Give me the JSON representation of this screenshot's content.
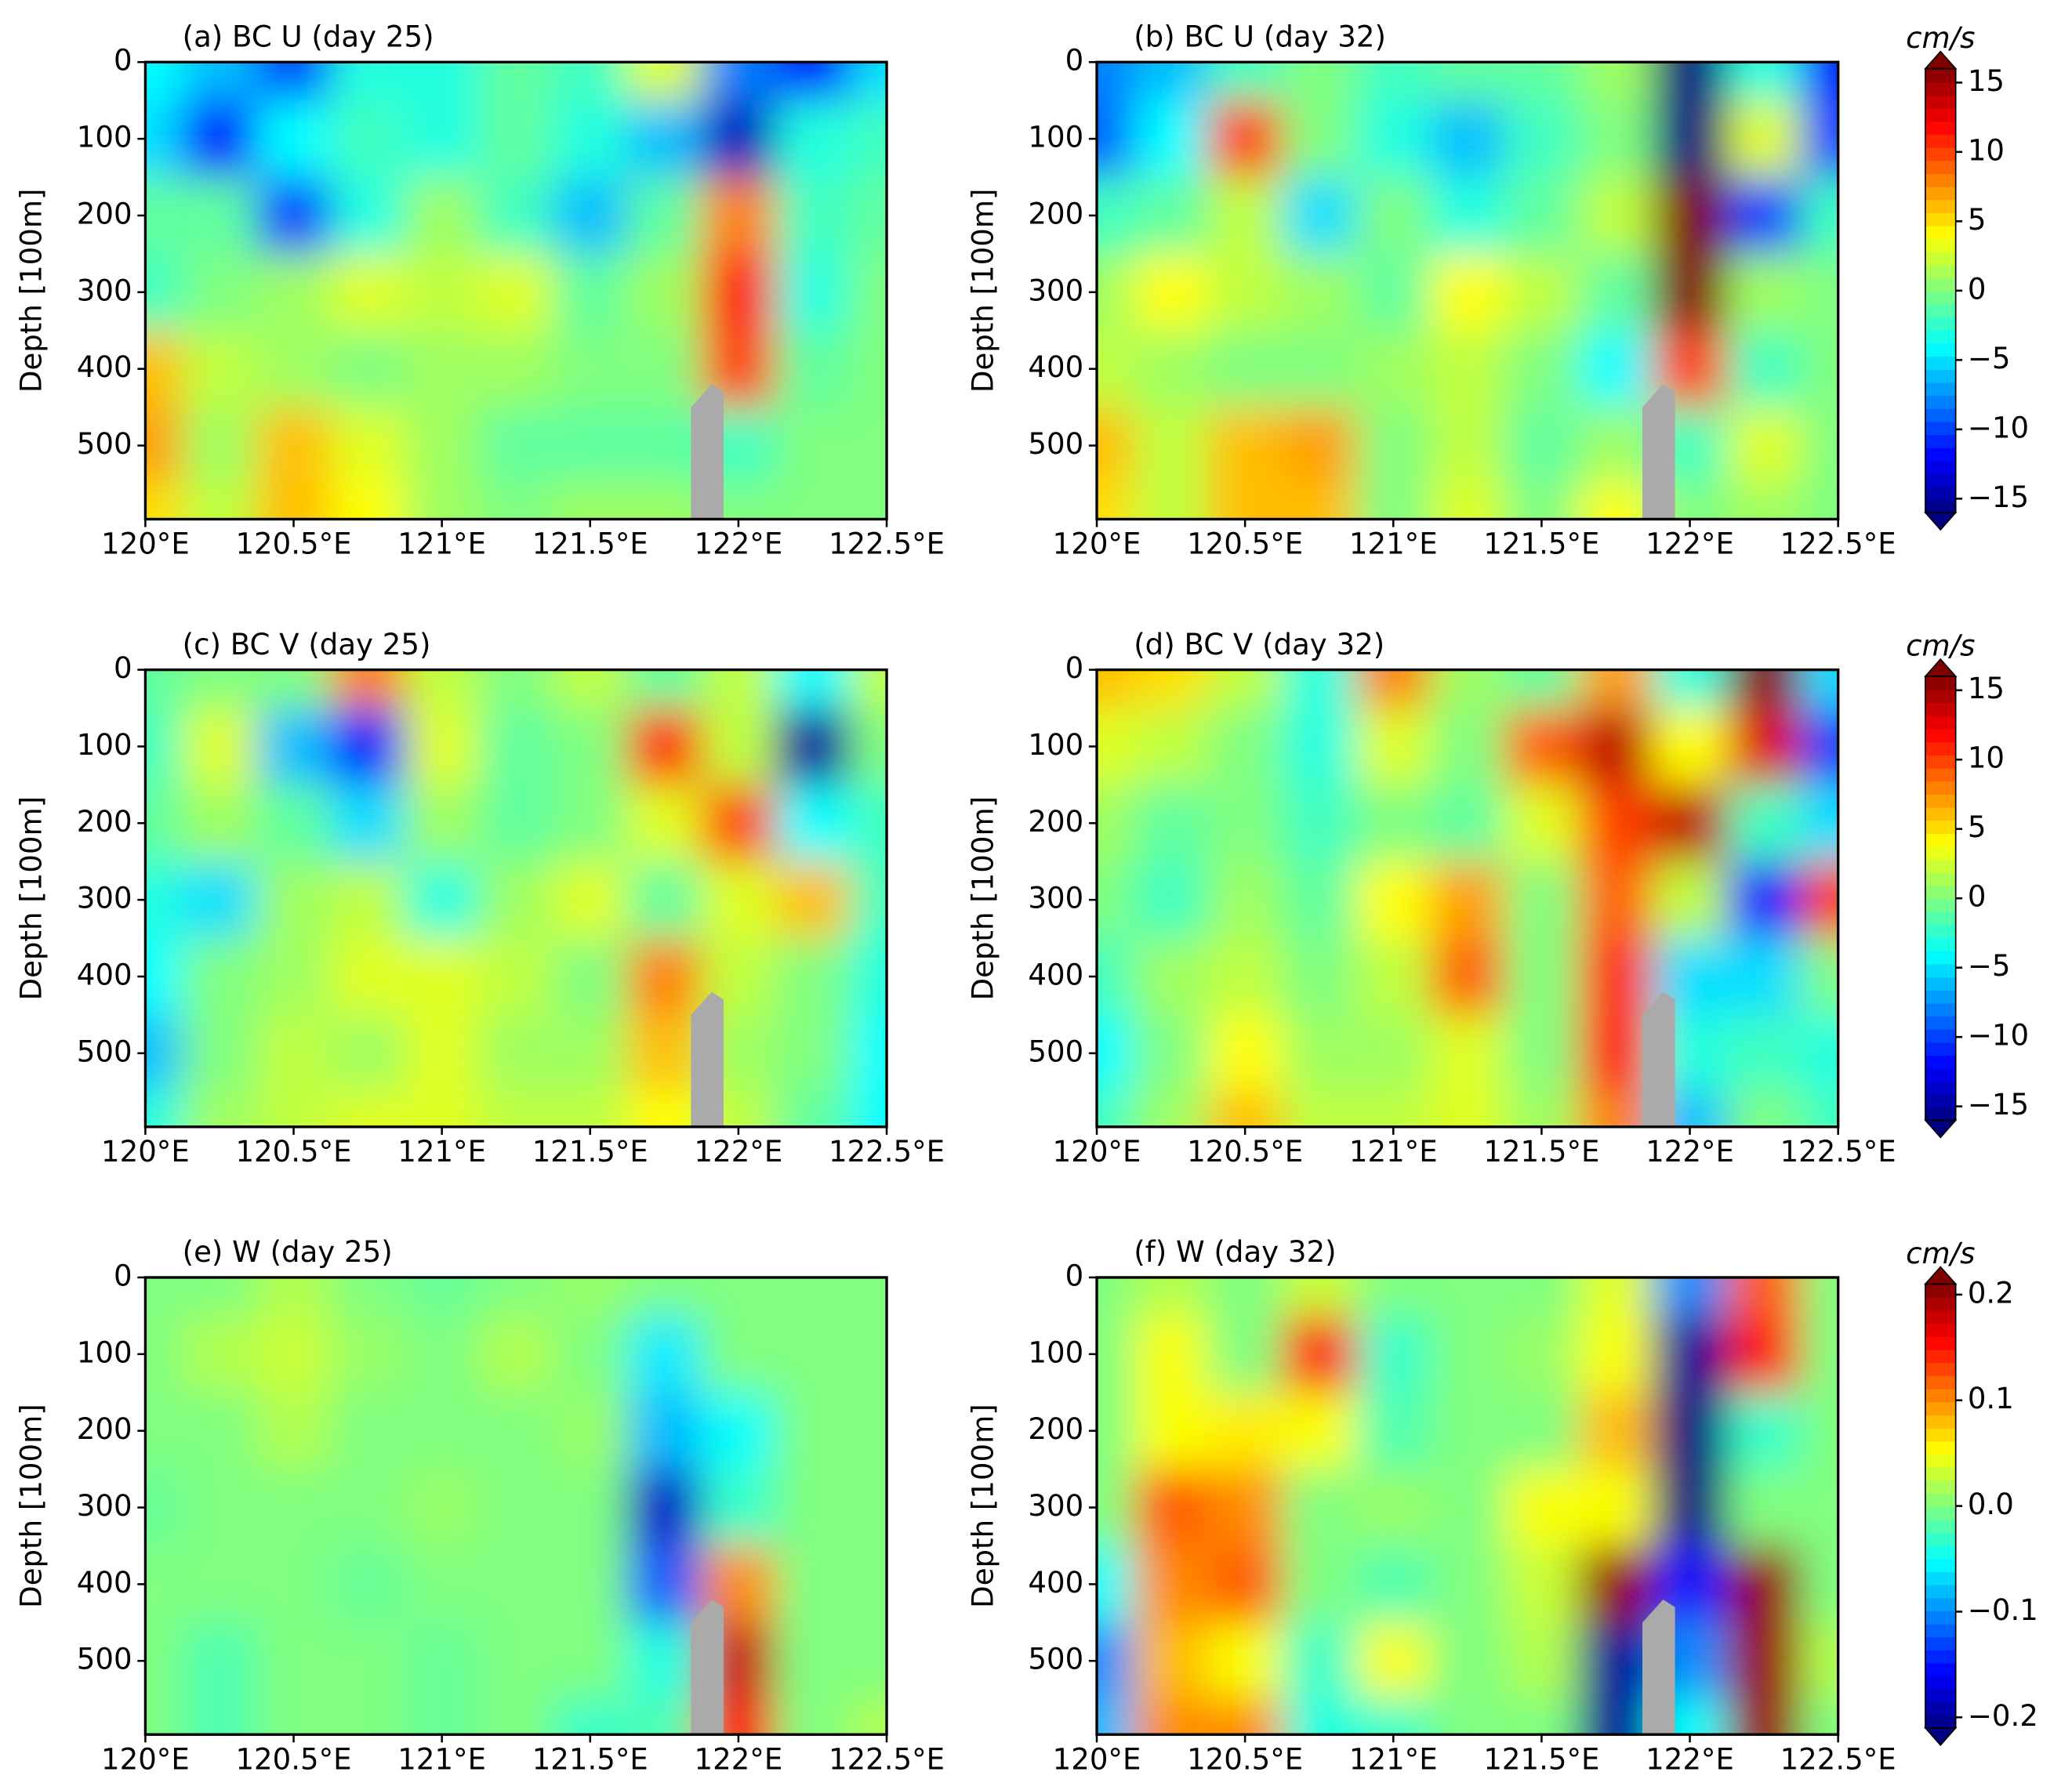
{
  "chart_data": [
    {
      "type": "contour",
      "title": "(a) BC U (day 25)",
      "ylabel": "Depth [100m]",
      "colormap": "jet",
      "y_inverted": true,
      "xlim": [
        120,
        122.5
      ],
      "ylim": [
        0,
        596
      ],
      "xticks": [
        {
          "value": 120,
          "label": "120°E"
        },
        {
          "value": 120.5,
          "label": "120.5°E"
        },
        {
          "value": 121,
          "label": "121°E"
        },
        {
          "value": 121.5,
          "label": "121.5°E"
        },
        {
          "value": 122,
          "label": "122°E"
        },
        {
          "value": 122.5,
          "label": "122.5°E"
        }
      ],
      "yticks": [
        0,
        100,
        200,
        300,
        400,
        500
      ],
      "land_mask": {
        "color": "#aaaaaa",
        "x": [
          121.84,
          121.84,
          121.91,
          121.95,
          121.95
        ],
        "depth": [
          596,
          450,
          420,
          430,
          596
        ]
      },
      "field": {
        "x": [
          120,
          120.25,
          120.5,
          120.75,
          121,
          121.25,
          121.5,
          121.75,
          122,
          122.25,
          122.5
        ],
        "depth": [
          0,
          100,
          200,
          300,
          400,
          500,
          596
        ],
        "values": [
          [
            -4,
            -6,
            -10,
            -3,
            -3,
            -1,
            -2,
            3,
            -8,
            -12,
            -5
          ],
          [
            -5,
            -12,
            -4,
            -2,
            -3,
            -1,
            -3,
            -6,
            -14,
            -3,
            -2
          ],
          [
            -1,
            -1,
            -10,
            -3,
            1,
            -2,
            -6,
            -1,
            8,
            -2,
            -1
          ],
          [
            -2,
            0,
            1,
            3,
            2,
            3,
            -1,
            1,
            12,
            -3,
            0
          ],
          [
            6,
            2,
            1,
            0,
            1,
            1,
            0,
            0,
            10,
            -1,
            0
          ],
          [
            7,
            1,
            6,
            3,
            1,
            -1,
            -1,
            -1,
            -2,
            0,
            0
          ],
          [
            5,
            2,
            6,
            4,
            1,
            0,
            1,
            1,
            0,
            0,
            0
          ]
        ]
      }
    },
    {
      "type": "contour",
      "title": "(b) BC U (day 32)",
      "ylabel": "Depth [100m]",
      "colormap": "jet",
      "y_inverted": true,
      "xlim": [
        120,
        122.5
      ],
      "ylim": [
        0,
        596
      ],
      "xticks": [
        {
          "value": 120,
          "label": "120°E"
        },
        {
          "value": 120.5,
          "label": "120.5°E"
        },
        {
          "value": 121,
          "label": "121°E"
        },
        {
          "value": 121.5,
          "label": "121.5°E"
        },
        {
          "value": 122,
          "label": "122°E"
        },
        {
          "value": 122.5,
          "label": "122.5°E"
        }
      ],
      "yticks": [
        0,
        100,
        200,
        300,
        400,
        500
      ],
      "land_mask": {
        "color": "#aaaaaa",
        "x": [
          121.84,
          121.84,
          121.91,
          121.95,
          121.95
        ],
        "depth": [
          596,
          450,
          420,
          430,
          596
        ]
      },
      "field": {
        "x": [
          120,
          120.25,
          120.5,
          120.75,
          121,
          121.25,
          121.5,
          121.75,
          122,
          122.25,
          122.5
        ],
        "depth": [
          0,
          100,
          200,
          300,
          400,
          500,
          596
        ],
        "values": [
          [
            -8,
            -6,
            -2,
            0,
            -2,
            -1,
            -1,
            1,
            -16,
            -3,
            -12
          ],
          [
            -9,
            -4,
            10,
            0,
            -3,
            -6,
            -2,
            0,
            -16,
            3,
            -10
          ],
          [
            -2,
            -1,
            2,
            -5,
            0,
            -3,
            -1,
            2,
            16,
            -10,
            -2
          ],
          [
            1,
            4,
            2,
            1,
            -1,
            4,
            2,
            -1,
            16,
            1,
            0
          ],
          [
            2,
            1,
            0,
            0,
            1,
            2,
            0,
            -4,
            10,
            -2,
            0
          ],
          [
            6,
            2,
            6,
            7,
            0,
            2,
            -1,
            1,
            -2,
            3,
            0
          ],
          [
            5,
            2,
            6,
            6,
            0,
            3,
            0,
            4,
            0,
            1,
            0
          ]
        ]
      },
      "colorbar": {
        "label": "cm/s",
        "lim": [
          -16,
          16
        ],
        "extend": "both",
        "ticks": [
          {
            "value": -15,
            "label": "−15"
          },
          {
            "value": -10,
            "label": "−10"
          },
          {
            "value": -5,
            "label": "−5"
          },
          0,
          5,
          10,
          15
        ]
      }
    },
    {
      "type": "contour",
      "title": "(c) BC V (day 25)",
      "ylabel": "Depth [100m]",
      "colormap": "jet",
      "y_inverted": true,
      "xlim": [
        120,
        122.5
      ],
      "ylim": [
        0,
        596
      ],
      "xticks": [
        {
          "value": 120,
          "label": "120°E"
        },
        {
          "value": 120.5,
          "label": "120.5°E"
        },
        {
          "value": 121,
          "label": "121°E"
        },
        {
          "value": 121.5,
          "label": "121.5°E"
        },
        {
          "value": 122,
          "label": "122°E"
        },
        {
          "value": 122.5,
          "label": "122.5°E"
        }
      ],
      "yticks": [
        0,
        100,
        200,
        300,
        400,
        500
      ],
      "land_mask": {
        "color": "#aaaaaa",
        "x": [
          121.84,
          121.84,
          121.91,
          121.95,
          121.95
        ],
        "depth": [
          596,
          450,
          420,
          430,
          596
        ]
      },
      "field": {
        "x": [
          120,
          120.25,
          120.5,
          120.75,
          121,
          121.25,
          121.5,
          121.75,
          122,
          122.25,
          122.5
        ],
        "depth": [
          0,
          100,
          200,
          300,
          400,
          500,
          596
        ],
        "values": [
          [
            -1,
            0,
            0,
            8,
            2,
            0,
            2,
            -1,
            2,
            -4,
            2
          ],
          [
            -2,
            3,
            -6,
            -12,
            3,
            -1,
            0,
            11,
            2,
            -15,
            0
          ],
          [
            -1,
            1,
            -1,
            -5,
            1,
            -1,
            0,
            3,
            10,
            -4,
            -2
          ],
          [
            -3,
            -5,
            1,
            2,
            -3,
            1,
            3,
            -1,
            3,
            6,
            -2
          ],
          [
            -4,
            0,
            1,
            3,
            3,
            2,
            0,
            8,
            2,
            0,
            -3
          ],
          [
            -6,
            0,
            2,
            1,
            3,
            1,
            1,
            6,
            1,
            0,
            -4
          ],
          [
            -3,
            1,
            2,
            3,
            3,
            2,
            2,
            4,
            2,
            -1,
            -4
          ]
        ]
      }
    },
    {
      "type": "contour",
      "title": "(d) BC V (day 32)",
      "ylabel": "Depth [100m]",
      "colormap": "jet",
      "y_inverted": true,
      "xlim": [
        120,
        122.5
      ],
      "ylim": [
        0,
        596
      ],
      "xticks": [
        {
          "value": 120,
          "label": "120°E"
        },
        {
          "value": 120.5,
          "label": "120.5°E"
        },
        {
          "value": 121,
          "label": "121°E"
        },
        {
          "value": 121.5,
          "label": "121.5°E"
        },
        {
          "value": 122,
          "label": "122°E"
        },
        {
          "value": 122.5,
          "label": "122.5°E"
        }
      ],
      "yticks": [
        0,
        100,
        200,
        300,
        400,
        500
      ],
      "land_mask": {
        "color": "#aaaaaa",
        "x": [
          121.84,
          121.84,
          121.91,
          121.95,
          121.95
        ],
        "depth": [
          596,
          450,
          420,
          430,
          596
        ]
      },
      "field": {
        "x": [
          120,
          120.25,
          120.5,
          120.75,
          121,
          121.25,
          121.5,
          121.75,
          122,
          122.25,
          122.5
        ],
        "depth": [
          0,
          100,
          200,
          300,
          400,
          500,
          596
        ],
        "values": [
          [
            6,
            5,
            2,
            -3,
            8,
            1,
            -1,
            7,
            -3,
            16,
            -5
          ],
          [
            3,
            2,
            0,
            -3,
            3,
            0,
            9,
            14,
            4,
            13,
            -10
          ],
          [
            1,
            -1,
            0,
            -2,
            0,
            -1,
            3,
            10,
            14,
            -2,
            -5
          ],
          [
            0,
            -2,
            1,
            -1,
            4,
            7,
            0,
            9,
            2,
            -12,
            10
          ],
          [
            -2,
            1,
            2,
            0,
            2,
            9,
            0,
            11,
            -5,
            -5,
            0
          ],
          [
            -4,
            0,
            4,
            1,
            1,
            3,
            0,
            12,
            -3,
            -2,
            -3
          ],
          [
            -2,
            1,
            6,
            2,
            2,
            3,
            1,
            8,
            -6,
            0,
            -2
          ]
        ]
      },
      "colorbar": {
        "label": "cm/s",
        "lim": [
          -16,
          16
        ],
        "extend": "both",
        "ticks": [
          {
            "value": -15,
            "label": "−15"
          },
          {
            "value": -10,
            "label": "−10"
          },
          {
            "value": -5,
            "label": "−5"
          },
          0,
          5,
          10,
          15
        ]
      }
    },
    {
      "type": "contour",
      "title": "(e) W (day 25)",
      "ylabel": "Depth [100m]",
      "colormap": "jet",
      "y_inverted": true,
      "xlim": [
        120,
        122.5
      ],
      "ylim": [
        0,
        596
      ],
      "xticks": [
        {
          "value": 120,
          "label": "120°E"
        },
        {
          "value": 120.5,
          "label": "120.5°E"
        },
        {
          "value": 121,
          "label": "121°E"
        },
        {
          "value": 121.5,
          "label": "121.5°E"
        },
        {
          "value": 122,
          "label": "122°E"
        },
        {
          "value": 122.5,
          "label": "122.5°E"
        }
      ],
      "yticks": [
        0,
        100,
        200,
        300,
        400,
        500
      ],
      "land_mask": {
        "color": "#aaaaaa",
        "x": [
          121.84,
          121.84,
          121.91,
          121.95,
          121.95
        ],
        "depth": [
          596,
          450,
          420,
          430,
          596
        ]
      },
      "field": {
        "x": [
          120,
          120.25,
          120.5,
          120.75,
          121,
          121.25,
          121.5,
          121.75,
          122,
          122.25,
          122.5
        ],
        "depth": [
          0,
          100,
          200,
          300,
          400,
          500,
          596
        ],
        "values": [
          [
            0,
            0,
            0.02,
            0,
            -0.01,
            0,
            0.01,
            0,
            0,
            0,
            0
          ],
          [
            0,
            0.02,
            0.03,
            0.01,
            0,
            0.02,
            0,
            -0.06,
            0,
            0,
            0
          ],
          [
            0,
            0,
            0.02,
            0,
            0,
            0,
            0.01,
            -0.08,
            -0.05,
            0,
            0
          ],
          [
            -0.01,
            0,
            0,
            0,
            0.01,
            0,
            0,
            -0.18,
            -0.03,
            0,
            0
          ],
          [
            0,
            0,
            0,
            -0.01,
            0,
            0,
            0,
            -0.12,
            0.1,
            0,
            0
          ],
          [
            0,
            -0.02,
            0,
            0,
            -0.01,
            0,
            0,
            -0.04,
            0.18,
            0,
            0
          ],
          [
            0,
            -0.02,
            0,
            0,
            -0.01,
            0,
            -0.03,
            -0.02,
            0.16,
            0,
            0.02
          ]
        ]
      }
    },
    {
      "type": "contour",
      "title": "(f) W (day 32)",
      "ylabel": "Depth [100m]",
      "colormap": "jet",
      "y_inverted": true,
      "xlim": [
        120,
        122.5
      ],
      "ylim": [
        0,
        596
      ],
      "xticks": [
        {
          "value": 120,
          "label": "120°E"
        },
        {
          "value": 120.5,
          "label": "120.5°E"
        },
        {
          "value": 121,
          "label": "121°E"
        },
        {
          "value": 121.5,
          "label": "121.5°E"
        },
        {
          "value": 122,
          "label": "122°E"
        },
        {
          "value": 122.5,
          "label": "122.5°E"
        }
      ],
      "yticks": [
        0,
        100,
        200,
        300,
        400,
        500
      ],
      "land_mask": {
        "color": "#aaaaaa",
        "x": [
          121.84,
          121.84,
          121.91,
          121.95,
          121.95
        ],
        "depth": [
          596,
          450,
          420,
          430,
          596
        ]
      },
      "field": {
        "x": [
          120,
          120.25,
          120.5,
          120.75,
          121,
          121.25,
          121.5,
          121.75,
          122,
          122.25,
          122.5
        ],
        "depth": [
          0,
          100,
          200,
          300,
          400,
          500,
          596
        ],
        "values": [
          [
            0,
            0.02,
            0,
            0.03,
            0,
            0,
            0,
            0.04,
            -0.1,
            0.12,
            0
          ],
          [
            0,
            0.05,
            0,
            0.15,
            -0.03,
            0,
            0.01,
            0.05,
            -0.2,
            0.15,
            0
          ],
          [
            0,
            0.05,
            0.06,
            0.05,
            -0.02,
            0,
            0,
            0.08,
            -0.21,
            -0.03,
            0
          ],
          [
            0,
            0.12,
            0.1,
            0,
            0.01,
            0,
            0.05,
            0.05,
            -0.21,
            0,
            0
          ],
          [
            -0.05,
            0.1,
            0.12,
            0,
            -0.02,
            0,
            0.03,
            0.2,
            -0.15,
            0.2,
            0
          ],
          [
            -0.1,
            0.08,
            0.05,
            -0.03,
            0.05,
            0,
            0.02,
            -0.2,
            -0.1,
            0.2,
            0.02
          ],
          [
            -0.08,
            0.1,
            0.1,
            -0.04,
            -0.03,
            0,
            0,
            -0.2,
            -0.05,
            0.2,
            0
          ]
        ]
      },
      "colorbar": {
        "label": "cm/s",
        "lim": [
          -0.21,
          0.21
        ],
        "extend": "both",
        "ticks": [
          {
            "value": -0.2,
            "label": "−0.2"
          },
          {
            "value": -0.1,
            "label": "−0.1"
          },
          {
            "value": 0,
            "label": "0.0"
          },
          0.1,
          0.2
        ]
      }
    }
  ]
}
